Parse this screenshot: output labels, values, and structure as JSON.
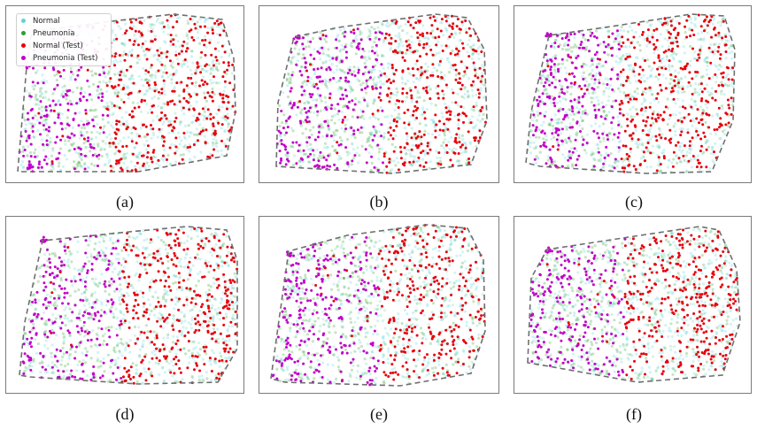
{
  "legend": {
    "items": [
      {
        "label": "Normal",
        "color": "#5fd3d8"
      },
      {
        "label": "Pneumonia",
        "color": "#2ca02c"
      },
      {
        "label": "Normal (Test)",
        "color": "#e8000b"
      },
      {
        "label": "Pneumonia (Test)",
        "color": "#c200c8"
      }
    ]
  },
  "chart_data": [
    {
      "type": "scatter",
      "caption": "(a)",
      "grid": false,
      "series": [
        {
          "name": "Normal"
        },
        {
          "name": "Pneumonia"
        },
        {
          "name": "Normal (Test)"
        },
        {
          "name": "Pneumonia (Test)"
        }
      ]
    },
    {
      "type": "scatter",
      "caption": "(b)",
      "grid": false,
      "series": [
        {
          "name": "Normal"
        },
        {
          "name": "Pneumonia"
        },
        {
          "name": "Normal (Test)"
        },
        {
          "name": "Pneumonia (Test)"
        }
      ]
    },
    {
      "type": "scatter",
      "caption": "(c)",
      "grid": false,
      "series": [
        {
          "name": "Normal"
        },
        {
          "name": "Pneumonia"
        },
        {
          "name": "Normal (Test)"
        },
        {
          "name": "Pneumonia (Test)"
        }
      ]
    },
    {
      "type": "scatter",
      "caption": "(d)",
      "grid": false,
      "series": [
        {
          "name": "Normal"
        },
        {
          "name": "Pneumonia"
        },
        {
          "name": "Normal (Test)"
        },
        {
          "name": "Pneumonia (Test)"
        }
      ]
    },
    {
      "type": "scatter",
      "caption": "(e)",
      "grid": false,
      "series": [
        {
          "name": "Normal"
        },
        {
          "name": "Pneumonia"
        },
        {
          "name": "Normal (Test)"
        },
        {
          "name": "Pneumonia (Test)"
        }
      ]
    },
    {
      "type": "scatter",
      "caption": "(f)",
      "grid": false,
      "series": [
        {
          "name": "Normal"
        },
        {
          "name": "Pneumonia"
        },
        {
          "name": "Normal (Test)"
        },
        {
          "name": "Pneumonia (Test)"
        }
      ]
    }
  ]
}
